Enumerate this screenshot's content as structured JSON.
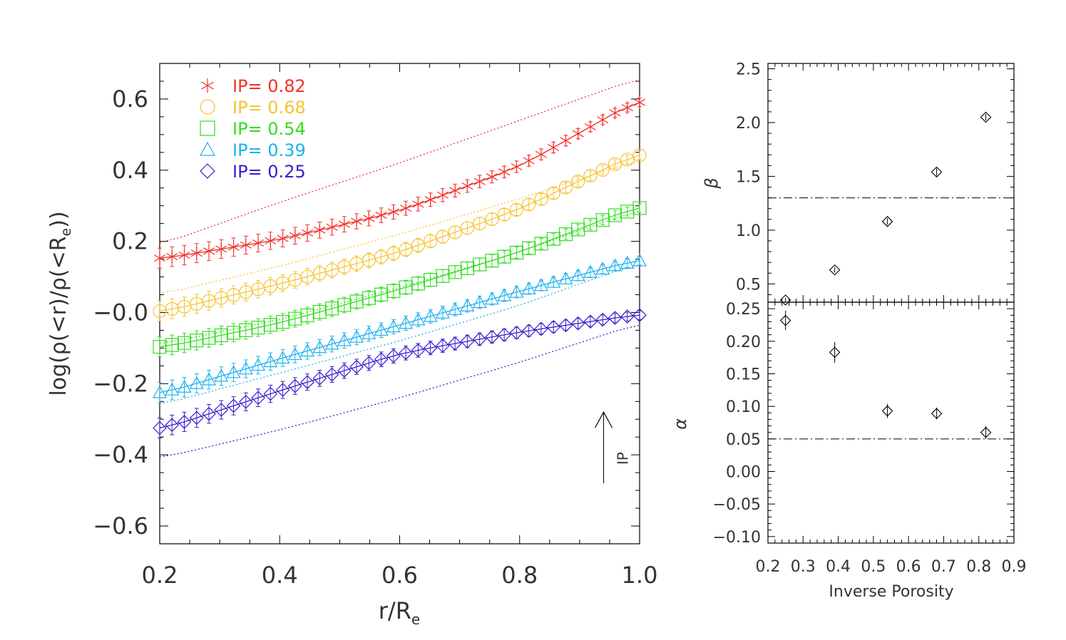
{
  "colors": {
    "IP_0.82": "#f0302a",
    "IP_0.68": "#f4c430",
    "IP_0.54": "#33dd22",
    "IP_0.39": "#1eb0f0",
    "IP_0.25": "#3a1ccf"
  },
  "chart_data": [
    {
      "type": "line",
      "title": "",
      "xlabel": "r/R",
      "xlabel_sub": "e",
      "ylabel": "log(ρ(<r)/ρ(<R",
      "ylabel_sub": "e",
      "ylabel_tail": "))",
      "xlim": [
        0.2,
        1.0
      ],
      "ylim": [
        -0.65,
        0.7
      ],
      "xticks": [
        0.2,
        0.4,
        0.6,
        0.8,
        1.0
      ],
      "xtick_labels": [
        "0.2",
        "0.4",
        "0.6",
        "0.8",
        "1.0"
      ],
      "yticks": [
        -0.6,
        -0.4,
        -0.2,
        0.0,
        0.2,
        0.4,
        0.6
      ],
      "ytick_labels": [
        "−0.6",
        "−0.4",
        "−0.2",
        "−0.0",
        "0.2",
        "0.4",
        "0.6"
      ],
      "legend_position": "top-left",
      "annotation": {
        "text": "IP",
        "arrow": "up",
        "x": 0.94,
        "y_from": -0.48,
        "y_to": -0.28
      },
      "series": [
        {
          "name": "IP= 0.82",
          "marker": "asterisk",
          "color_key": "IP_0.82",
          "x": [
            0.2,
            0.4,
            0.6,
            0.8,
            1.0
          ],
          "y": [
            0.15,
            0.205,
            0.285,
            0.41,
            0.6
          ],
          "dotted": [
            0.19,
            0.31,
            0.42,
            0.54,
            0.66
          ]
        },
        {
          "name": "IP= 0.68",
          "marker": "circle",
          "color_key": "IP_0.68",
          "x": [
            0.2,
            0.4,
            0.6,
            0.8,
            1.0
          ],
          "y": [
            0.0,
            0.08,
            0.17,
            0.29,
            0.45
          ],
          "dotted": [
            0.05,
            0.13,
            0.22,
            0.32,
            0.43
          ]
        },
        {
          "name": "IP= 0.54",
          "marker": "square",
          "color_key": "IP_0.54",
          "x": [
            0.2,
            0.4,
            0.6,
            0.8,
            1.0
          ],
          "y": [
            -0.1,
            -0.03,
            0.065,
            0.17,
            0.3
          ],
          "dotted": [
            -0.09,
            -0.02,
            0.07,
            0.17,
            0.29
          ]
        },
        {
          "name": "IP= 0.39",
          "marker": "triangle",
          "color_key": "IP_0.39",
          "x": [
            0.2,
            0.4,
            0.6,
            0.8,
            1.0
          ],
          "y": [
            -0.23,
            -0.13,
            -0.035,
            0.06,
            0.15
          ],
          "dotted": [
            -0.26,
            -0.17,
            -0.08,
            0.02,
            0.14
          ]
        },
        {
          "name": "IP= 0.25",
          "marker": "diamond",
          "color_key": "IP_0.25",
          "x": [
            0.2,
            0.4,
            0.6,
            0.8,
            1.0
          ],
          "y": [
            -0.33,
            -0.22,
            -0.115,
            -0.055,
            -0.005
          ],
          "dotted": [
            -0.41,
            -0.33,
            -0.24,
            -0.14,
            -0.03
          ]
        }
      ]
    },
    {
      "type": "scatter",
      "title": "",
      "xlabel": "",
      "ylabel": "β",
      "xlim": [
        0.2,
        0.9
      ],
      "ylim": [
        0.33,
        2.55
      ],
      "yticks": [
        0.5,
        1.0,
        1.5,
        2.0,
        2.5
      ],
      "ytick_labels": [
        "0.5",
        "1.0",
        "1.5",
        "2.0",
        "2.5"
      ],
      "reference_line": 1.3,
      "x": [
        0.25,
        0.39,
        0.54,
        0.68,
        0.82
      ],
      "y": [
        0.35,
        0.63,
        1.08,
        1.54,
        2.05
      ],
      "yerr": [
        0.02,
        0.025,
        0.03,
        0.035,
        0.03
      ]
    },
    {
      "type": "scatter",
      "title": "",
      "xlabel": "Inverse Porosity",
      "ylabel": "α",
      "xlim": [
        0.2,
        0.9
      ],
      "ylim": [
        -0.11,
        0.26
      ],
      "xticks": [
        0.2,
        0.3,
        0.4,
        0.5,
        0.6,
        0.7,
        0.8,
        0.9
      ],
      "xtick_labels": [
        "0.2",
        "0.3",
        "0.4",
        "0.5",
        "0.6",
        "0.7",
        "0.8",
        "0.9"
      ],
      "yticks": [
        -0.1,
        -0.05,
        0.0,
        0.05,
        0.1,
        0.15,
        0.2,
        0.25
      ],
      "ytick_labels": [
        "−0.10",
        "−0.05",
        "0.00",
        "0.05",
        "0.10",
        "0.15",
        "0.20",
        "0.25"
      ],
      "reference_line": 0.05,
      "x": [
        0.25,
        0.39,
        0.54,
        0.68,
        0.82
      ],
      "y": [
        0.232,
        0.183,
        0.093,
        0.089,
        0.06
      ],
      "yerr": [
        0.015,
        0.016,
        0.011,
        0.009,
        0.01
      ]
    }
  ]
}
